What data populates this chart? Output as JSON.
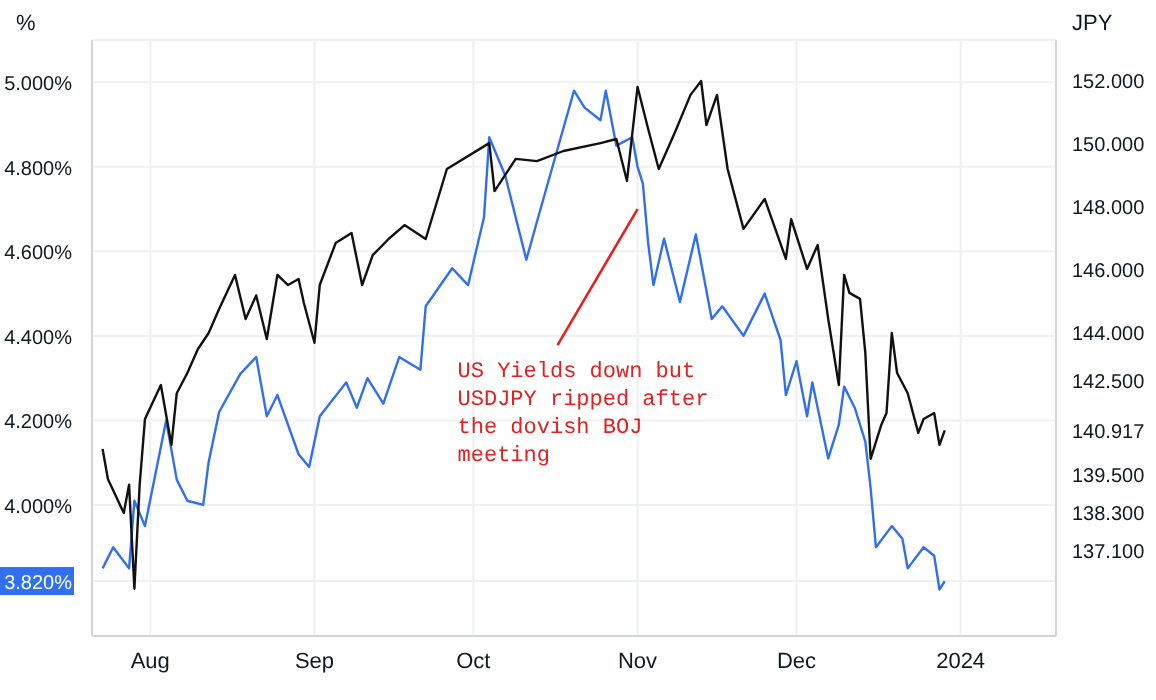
{
  "chart_data": {
    "type": "line",
    "ylabel": "%",
    "y2label": "JPY",
    "xlim": [
      "2023-07-21",
      "2024-01-19"
    ],
    "xticks": [
      {
        "value": "2023-08-01",
        "label": "Aug"
      },
      {
        "value": "2023-09-01",
        "label": "Sep"
      },
      {
        "value": "2023-10-01",
        "label": "Oct"
      },
      {
        "value": "2023-11-01",
        "label": "Nov"
      },
      {
        "value": "2023-12-01",
        "label": "Dec"
      },
      {
        "value": "2024-01-01",
        "label": "2024"
      }
    ],
    "ylim": [
      3.69,
      5.1
    ],
    "yticks": [
      {
        "value": 3.82,
        "label": "3.820%"
      },
      {
        "value": 4.0,
        "label": "4.000%"
      },
      {
        "value": 4.2,
        "label": "4.200%"
      },
      {
        "value": 4.4,
        "label": "4.400%"
      },
      {
        "value": 4.6,
        "label": "4.600%"
      },
      {
        "value": 4.8,
        "label": "4.800%"
      },
      {
        "value": 5.0,
        "label": "5.000%"
      }
    ],
    "y2lim": [
      134.4,
      153.3
    ],
    "y2ticks": [
      {
        "value": 137.1,
        "label": "137.100"
      },
      {
        "value": 138.3,
        "label": "138.300"
      },
      {
        "value": 139.5,
        "label": "139.500"
      },
      {
        "value": 140.917,
        "label": "140.917"
      },
      {
        "value": 142.5,
        "label": "142.500"
      },
      {
        "value": 144,
        "label": "144.000"
      },
      {
        "value": 146,
        "label": "146.000"
      },
      {
        "value": 148,
        "label": "148.000"
      },
      {
        "value": 150,
        "label": "150.000"
      },
      {
        "value": 152,
        "label": "152.000"
      }
    ],
    "grid": true,
    "series": [
      {
        "color": "#2f6ff0",
        "x": [
          "2023-07-23",
          "2023-07-25",
          "2023-07-28",
          "2023-07-29",
          "2023-07-31",
          "2023-08-04",
          "2023-08-06",
          "2023-08-08",
          "2023-08-11",
          "2023-08-12",
          "2023-08-14",
          "2023-08-18",
          "2023-08-21",
          "2023-08-23",
          "2023-08-25",
          "2023-08-29",
          "2023-08-31",
          "2023-09-02",
          "2023-09-07",
          "2023-09-09",
          "2023-09-11",
          "2023-09-14",
          "2023-09-17",
          "2023-09-21",
          "2023-09-22",
          "2023-09-27",
          "2023-09-30",
          "2023-10-03",
          "2023-10-04",
          "2023-10-07",
          "2023-10-11",
          "2023-10-13",
          "2023-10-20",
          "2023-10-22",
          "2023-10-25",
          "2023-10-26",
          "2023-10-28",
          "2023-10-31",
          "2023-11-01",
          "2023-11-02",
          "2023-11-03",
          "2023-11-04",
          "2023-11-06",
          "2023-11-09",
          "2023-11-12",
          "2023-11-15",
          "2023-11-17",
          "2023-11-21",
          "2023-11-25",
          "2023-11-28",
          "2023-11-29",
          "2023-12-01",
          "2023-12-03",
          "2023-12-04",
          "2023-12-07",
          "2023-12-09",
          "2023-12-10",
          "2023-12-12",
          "2023-12-14",
          "2023-12-15",
          "2023-12-16",
          "2023-12-19",
          "2023-12-21",
          "2023-12-22",
          "2023-12-25",
          "2023-12-27",
          "2023-12-28",
          "2023-12-29"
        ],
        "values": [
          3.85,
          3.9,
          3.85,
          4.01,
          3.95,
          4.2,
          4.06,
          4.01,
          4.0,
          4.1,
          4.22,
          4.31,
          4.35,
          4.21,
          4.26,
          4.12,
          4.09,
          4.21,
          4.29,
          4.23,
          4.3,
          4.24,
          4.35,
          4.32,
          4.47,
          4.56,
          4.52,
          4.68,
          4.87,
          4.78,
          4.58,
          4.67,
          4.98,
          4.94,
          4.91,
          4.98,
          4.85,
          4.87,
          4.8,
          4.76,
          4.62,
          4.52,
          4.63,
          4.48,
          4.64,
          4.44,
          4.47,
          4.4,
          4.5,
          4.39,
          4.26,
          4.34,
          4.21,
          4.29,
          4.11,
          4.19,
          4.28,
          4.23,
          4.15,
          4.04,
          3.9,
          3.95,
          3.92,
          3.85,
          3.9,
          3.88,
          3.8,
          3.82
        ]
      },
      {
        "color": "#111111",
        "axis": "y2",
        "x": [
          "2023-07-23",
          "2023-07-24",
          "2023-07-27",
          "2023-07-28",
          "2023-07-29",
          "2023-07-30",
          "2023-07-31",
          "2023-08-03",
          "2023-08-05",
          "2023-08-06",
          "2023-08-08",
          "2023-08-10",
          "2023-08-12",
          "2023-08-14",
          "2023-08-17",
          "2023-08-19",
          "2023-08-21",
          "2023-08-23",
          "2023-08-25",
          "2023-08-27",
          "2023-08-29",
          "2023-08-30",
          "2023-09-01",
          "2023-09-02",
          "2023-09-05",
          "2023-09-08",
          "2023-09-10",
          "2023-09-12",
          "2023-09-15",
          "2023-09-18",
          "2023-09-22",
          "2023-09-26",
          "2023-10-04",
          "2023-10-05",
          "2023-10-09",
          "2023-10-13",
          "2023-10-18",
          "2023-10-25",
          "2023-10-28",
          "2023-10-30",
          "2023-11-01",
          "2023-11-03",
          "2023-11-05",
          "2023-11-08",
          "2023-11-11",
          "2023-11-13",
          "2023-11-14",
          "2023-11-16",
          "2023-11-18",
          "2023-11-21",
          "2023-11-25",
          "2023-11-29",
          "2023-11-30",
          "2023-12-03",
          "2023-12-05",
          "2023-12-07",
          "2023-12-09",
          "2023-12-10",
          "2023-12-11",
          "2023-12-13",
          "2023-12-14",
          "2023-12-15",
          "2023-12-17",
          "2023-12-18",
          "2023-12-19",
          "2023-12-20",
          "2023-12-22",
          "2023-12-24",
          "2023-12-25",
          "2023-12-27",
          "2023-12-28",
          "2023-12-29"
        ],
        "values": [
          140.33,
          139.38,
          138.3,
          139.2,
          135.9,
          139.2,
          141.28,
          142.36,
          140.46,
          142.1,
          142.74,
          143.5,
          144.0,
          144.77,
          145.85,
          144.45,
          145.2,
          143.82,
          145.85,
          145.53,
          145.72,
          144.96,
          143.7,
          145.53,
          146.86,
          147.18,
          145.53,
          146.48,
          146.99,
          147.43,
          146.99,
          149.21,
          150.03,
          148.51,
          149.53,
          149.46,
          149.78,
          150.03,
          150.16,
          148.83,
          151.81,
          150.48,
          149.21,
          150.35,
          151.56,
          152.0,
          150.6,
          151.56,
          149.21,
          147.31,
          148.26,
          146.36,
          147.62,
          146.04,
          146.8,
          144.45,
          142.36,
          145.85,
          145.28,
          145.09,
          143.38,
          140.02,
          141.09,
          141.47,
          144.01,
          142.74,
          142.1,
          140.84,
          141.28,
          141.47,
          140.46,
          140.92
        ]
      }
    ],
    "annotations": [
      {
        "text": "US Yields down but\nUSDJPY ripped after\nthe dovish BOJ\nmeeting",
        "x": "2023-11-01",
        "y": 4.7
      }
    ]
  }
}
